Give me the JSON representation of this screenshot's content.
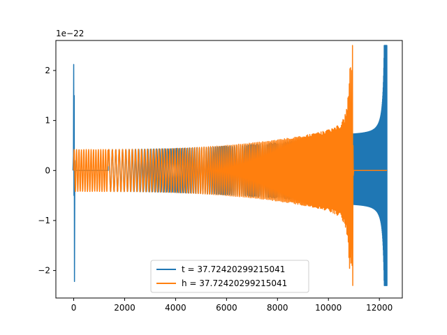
{
  "chart_data": {
    "type": "line",
    "title": "",
    "xlabel": "",
    "ylabel": "",
    "y_scale_factor_label": "1e−22",
    "xlim": [
      -700,
      12900
    ],
    "ylim": [
      -2.55,
      2.6
    ],
    "x_ticks": [
      0,
      2000,
      4000,
      6000,
      8000,
      10000,
      12000
    ],
    "x_tick_labels": [
      "0",
      "2000",
      "4000",
      "6000",
      "8000",
      "10000",
      "12000"
    ],
    "y_ticks": [
      -2,
      -1,
      0,
      1,
      2
    ],
    "y_tick_labels": [
      "−2",
      "−1",
      "0",
      "1",
      "2"
    ],
    "grid": false,
    "legend_position": "lower center",
    "series": [
      {
        "name": "t = 37.72420299215041",
        "color": "#1f77b4",
        "shape": "chirp",
        "spike_at_start": {
          "x": 0,
          "y_max": 2.12,
          "y_min": -2.22
        },
        "segments": [
          {
            "x_start": 0,
            "x_end": 1350,
            "amplitude": 0.0
          },
          {
            "x_start": 1350,
            "x_end": 10950,
            "amplitude_start": 0.42,
            "amplitude_end": 0.7,
            "oscillation_rate": "increasing"
          },
          {
            "x_start": 10950,
            "x_end": 12300,
            "amplitude_start": 0.7,
            "peak_x": 12250,
            "peak_y_max": 2.5,
            "peak_y_min": -2.3
          }
        ]
      },
      {
        "name": "h = 37.72420299215041",
        "color": "#ff7f0e",
        "shape": "chirp",
        "segments": [
          {
            "x_start": 0,
            "x_end": 1350,
            "amplitude": 0.42,
            "oscillation_rate": "steady"
          },
          {
            "x_start": 1350,
            "x_end": 10950,
            "amplitude_start": 0.42,
            "amplitude_end": 1.0,
            "oscillation_rate": "increasing",
            "peak_x": 10950,
            "peak_y_max": 2.5,
            "peak_y_min": -2.3
          },
          {
            "x_start": 10950,
            "x_end": 12300,
            "amplitude": 0.0
          }
        ]
      }
    ]
  }
}
